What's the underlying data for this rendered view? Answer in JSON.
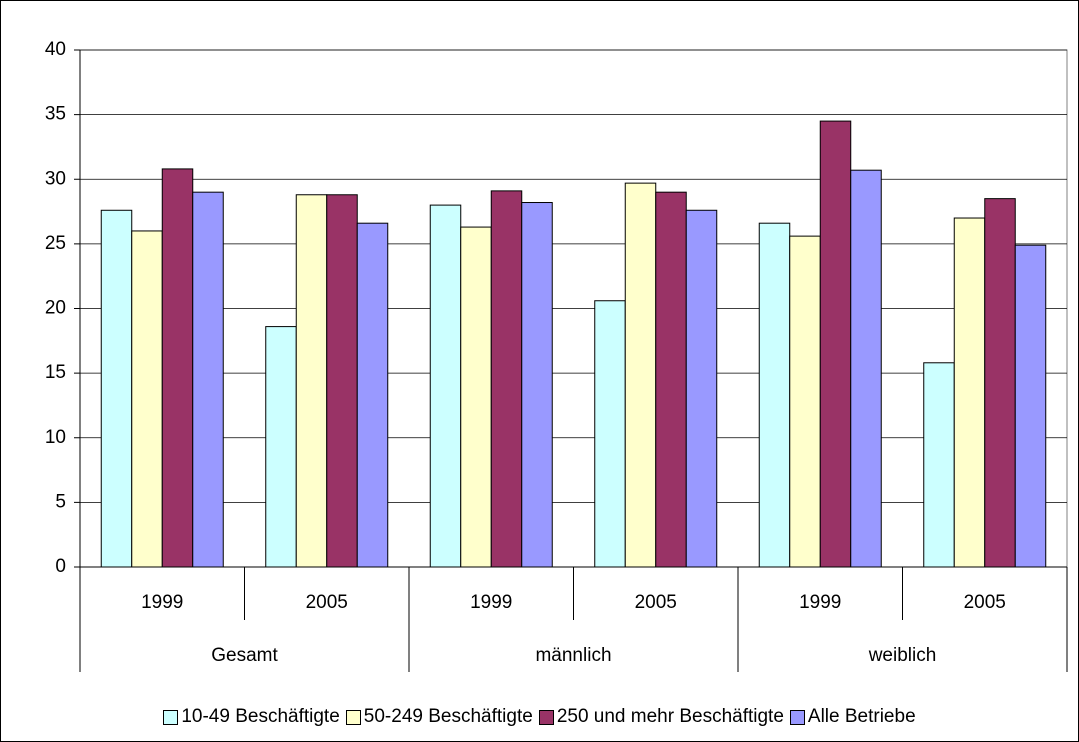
{
  "chart_data": {
    "type": "bar",
    "categories": [
      "1999",
      "2005",
      "1999",
      "2005",
      "1999",
      "2005"
    ],
    "groups": [
      "Gesamt",
      "männlich",
      "weiblich"
    ],
    "series": [
      {
        "name": "10-49 Beschäftigte",
        "color": "#ccffff",
        "values": [
          27.6,
          18.6,
          28.0,
          20.6,
          26.6,
          15.8
        ]
      },
      {
        "name": "50-249 Beschäftigte",
        "color": "#ffffcc",
        "values": [
          26.0,
          28.8,
          26.3,
          29.7,
          25.6,
          27.0
        ]
      },
      {
        "name": "250 und mehr Beschäftigte",
        "color": "#993366",
        "values": [
          30.8,
          28.8,
          29.1,
          29.0,
          34.5,
          28.5
        ]
      },
      {
        "name": "Alle Betriebe",
        "color": "#9999ff",
        "values": [
          29.0,
          26.6,
          28.2,
          27.6,
          30.7,
          24.9
        ]
      }
    ],
    "ylim": [
      0,
      40
    ],
    "yticks": [
      0,
      5,
      10,
      15,
      20,
      25,
      30,
      35,
      40
    ],
    "grid": true,
    "legend": "bottom"
  }
}
